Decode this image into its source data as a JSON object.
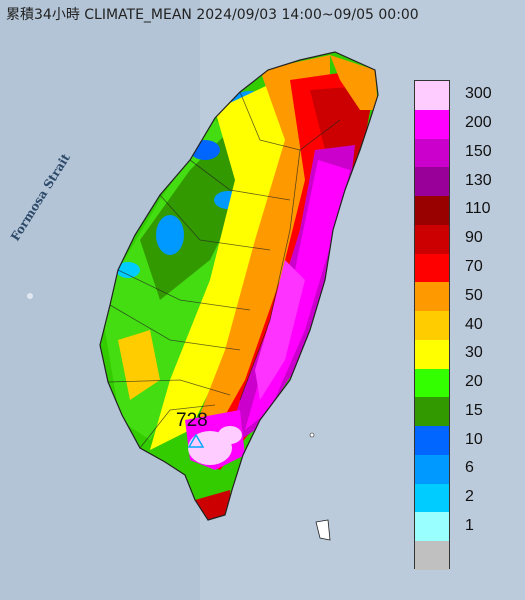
{
  "title": "累積34小時 CLIMATE_MEAN 2024/09/03 14:00~09/05 00:00",
  "strait_label": "Formosa Strait",
  "max_value_label": "728",
  "legend": {
    "levels": [
      {
        "label": "300",
        "color": "#ffccff"
      },
      {
        "label": "200",
        "color": "#ff00ff"
      },
      {
        "label": "150",
        "color": "#cc00cc"
      },
      {
        "label": "130",
        "color": "#990099"
      },
      {
        "label": "110",
        "color": "#990000"
      },
      {
        "label": "90",
        "color": "#cc0000"
      },
      {
        "label": "70",
        "color": "#ff0000"
      },
      {
        "label": "50",
        "color": "#ff9900"
      },
      {
        "label": "40",
        "color": "#ffcc00"
      },
      {
        "label": "30",
        "color": "#ffff00"
      },
      {
        "label": "20",
        "color": "#33ff00"
      },
      {
        "label": "15",
        "color": "#339900"
      },
      {
        "label": "10",
        "color": "#0066ff"
      },
      {
        "label": "6",
        "color": "#0099ff"
      },
      {
        "label": "2",
        "color": "#00ccff"
      },
      {
        "label": "1",
        "color": "#99ffff"
      },
      {
        "label": "",
        "color": "#c0c0c0"
      }
    ]
  }
}
